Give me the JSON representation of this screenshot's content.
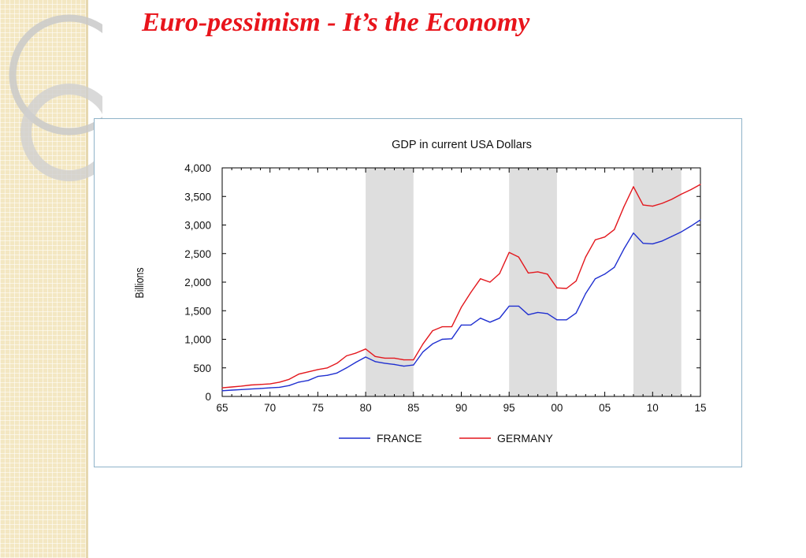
{
  "slide": {
    "title": "Euro-pessimism - It’s the Economy"
  },
  "colors": {
    "title": "#e8141b",
    "france": "#1f2fd0",
    "germany": "#e3171d",
    "recession_band": "#dedede",
    "frame_border": "#8fb3c9"
  },
  "chart_data": {
    "type": "line",
    "title": "GDP in current USA Dollars",
    "ylabel": "Billions",
    "xlabel": "",
    "xlim": [
      1965,
      2015
    ],
    "ylim": [
      0,
      4000
    ],
    "grid": false,
    "legend_position": "bottom",
    "x_tick_labels": [
      {
        "x": 1965,
        "label": "65"
      },
      {
        "x": 1970,
        "label": "70"
      },
      {
        "x": 1975,
        "label": "75"
      },
      {
        "x": 1980,
        "label": "80"
      },
      {
        "x": 1985,
        "label": "85"
      },
      {
        "x": 1990,
        "label": "90"
      },
      {
        "x": 1995,
        "label": "95"
      },
      {
        "x": 2000,
        "label": "00"
      },
      {
        "x": 2005,
        "label": "05"
      },
      {
        "x": 2010,
        "label": "10"
      },
      {
        "x": 2015,
        "label": "15"
      }
    ],
    "y_ticks": [
      0,
      500,
      1000,
      1500,
      2000,
      2500,
      3000,
      3500,
      4000
    ],
    "y_tick_labels": [
      "0",
      "500",
      "1,000",
      "1,500",
      "2,000",
      "2,500",
      "3,000",
      "3,500",
      "4,000"
    ],
    "shaded_periods": [
      [
        1980,
        1985
      ],
      [
        1995,
        2000
      ],
      [
        2008,
        2013
      ]
    ],
    "x": [
      1965,
      1966,
      1967,
      1968,
      1969,
      1970,
      1971,
      1972,
      1973,
      1974,
      1975,
      1976,
      1977,
      1978,
      1979,
      1980,
      1981,
      1982,
      1983,
      1984,
      1985,
      1986,
      1987,
      1988,
      1989,
      1990,
      1991,
      1992,
      1993,
      1994,
      1995,
      1996,
      1997,
      1998,
      1999,
      2000,
      2001,
      2002,
      2003,
      2004,
      2005,
      2006,
      2007,
      2008,
      2009,
      2010,
      2011,
      2012,
      2013,
      2014,
      2015
    ],
    "series": [
      {
        "name": "FRANCE",
        "values": [
          100,
          110,
          120,
          130,
          140,
          150,
          160,
          190,
          250,
          280,
          350,
          370,
          410,
          500,
          600,
          690,
          610,
          580,
          560,
          530,
          550,
          780,
          920,
          1000,
          1010,
          1250,
          1250,
          1370,
          1300,
          1370,
          1580,
          1580,
          1430,
          1470,
          1450,
          1340,
          1340,
          1460,
          1800,
          2060,
          2140,
          2260,
          2580,
          2860,
          2680,
          2670,
          2720,
          2800,
          2880,
          2980,
          3090
        ]
      },
      {
        "name": "GERMANY",
        "values": [
          150,
          165,
          180,
          200,
          210,
          220,
          250,
          300,
          390,
          430,
          470,
          500,
          580,
          710,
          760,
          830,
          700,
          670,
          670,
          640,
          640,
          920,
          1150,
          1220,
          1220,
          1560,
          1820,
          2060,
          2000,
          2150,
          2520,
          2440,
          2160,
          2180,
          2140,
          1900,
          1890,
          2020,
          2440,
          2740,
          2790,
          2920,
          3320,
          3670,
          3350,
          3330,
          3380,
          3450,
          3540,
          3620,
          3710
        ]
      }
    ]
  }
}
